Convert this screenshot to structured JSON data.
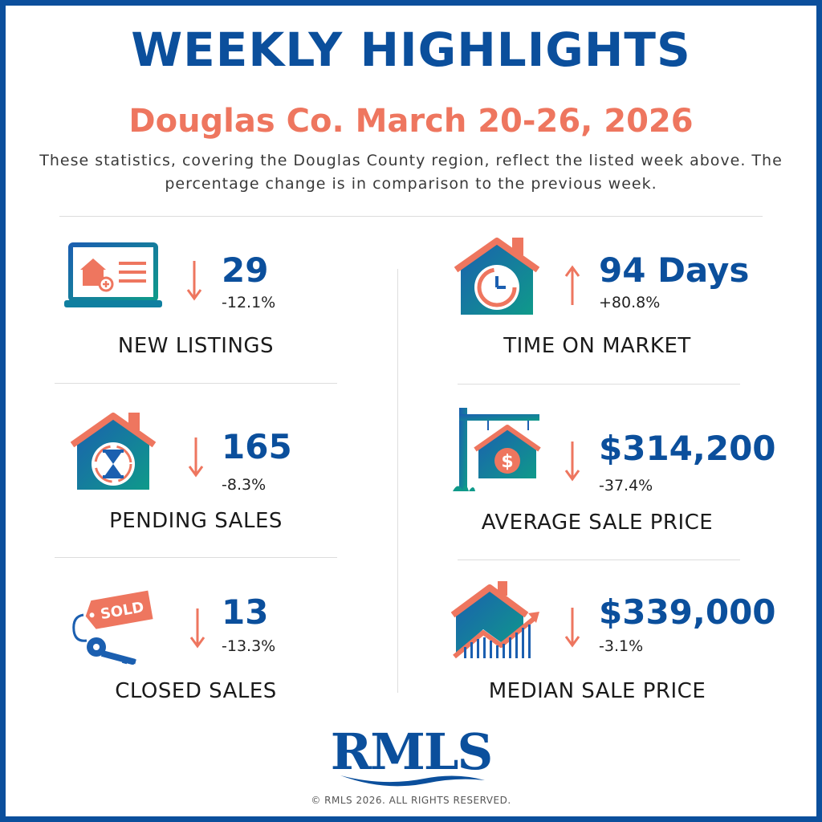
{
  "header": {
    "title": "WEEKLY HIGHLIGHTS",
    "subtitle": "Douglas Co. March 20-26, 2026",
    "description": "These statistics, covering the Douglas County region, reflect the listed week above. The percentage change is in comparison to the previous week."
  },
  "stats": {
    "new_listings": {
      "value": "29",
      "change": "-12.1%",
      "label": "NEW LISTINGS",
      "direction": "down",
      "icon": "laptop-house-icon"
    },
    "pending_sales": {
      "value": "165",
      "change": "-8.3%",
      "label": "PENDING SALES",
      "direction": "down",
      "icon": "house-hourglass-icon"
    },
    "closed_sales": {
      "value": "13",
      "change": "-13.3%",
      "label": "CLOSED SALES",
      "direction": "down",
      "icon": "sold-tag-key-icon"
    },
    "time_on_market": {
      "value": "94 Days",
      "change": "+80.8%",
      "label": "TIME ON MARKET",
      "direction": "up",
      "icon": "house-clock-icon"
    },
    "average_sale_price": {
      "value": "$314,200",
      "change": "-37.4%",
      "label": "AVERAGE SALE PRICE",
      "direction": "down",
      "icon": "house-sign-dollar-icon"
    },
    "median_sale_price": {
      "value": "$339,000",
      "change": "-3.1%",
      "label": "MEDIAN SALE PRICE",
      "direction": "down",
      "icon": "house-chart-icon"
    }
  },
  "icons": {
    "sold_tag_text": "SOLD"
  },
  "footer": {
    "logo": "RMLS",
    "copyright": "© RMLS 2026. ALL RIGHTS RESERVED."
  },
  "colors": {
    "primary_blue": "#0b4f9c",
    "accent_coral": "#ee765f",
    "teal": "#0f9a8a"
  }
}
